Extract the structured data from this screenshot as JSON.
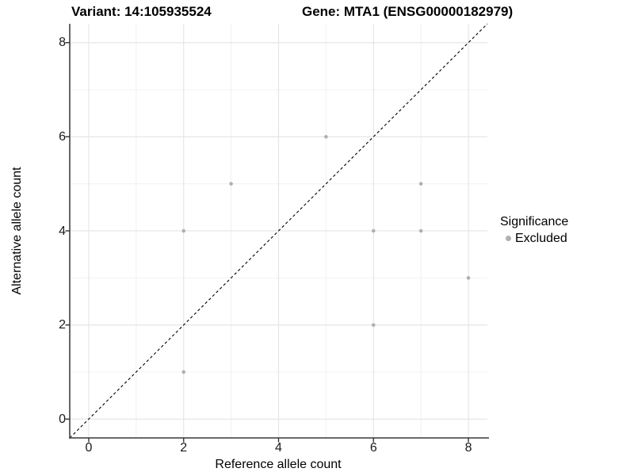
{
  "titles": {
    "left": "Variant: 14:105935524",
    "right": "Gene: MTA1 (ENSG00000182979)"
  },
  "chart_data": {
    "type": "scatter",
    "title_left": "Variant: 14:105935524",
    "title_right": "Gene: MTA1 (ENSG00000182979)",
    "xlabel": "Reference allele count",
    "ylabel": "Alternative allele count",
    "xlim": [
      -0.4,
      8.4
    ],
    "ylim": [
      -0.4,
      8.4
    ],
    "xticks": [
      0,
      2,
      4,
      6,
      8
    ],
    "yticks": [
      0,
      2,
      4,
      6,
      8
    ],
    "minor_ticks": [
      1,
      3,
      5,
      7
    ],
    "grid": true,
    "identity_line": {
      "slope": 1,
      "intercept": 0,
      "style": "dashed",
      "color": "#000000"
    },
    "series": [
      {
        "name": "Excluded",
        "color": "#b0b0b0",
        "points": [
          [
            2,
            1
          ],
          [
            2,
            4
          ],
          [
            3,
            5
          ],
          [
            5,
            6
          ],
          [
            6,
            2
          ],
          [
            6,
            4
          ],
          [
            7,
            4
          ],
          [
            7,
            5
          ],
          [
            8,
            3
          ]
        ]
      }
    ],
    "legend": {
      "title": "Significance",
      "position": "right",
      "items": [
        {
          "label": "Excluded",
          "color": "#b0b0b0"
        }
      ]
    }
  },
  "colors": {
    "background": "#ffffff",
    "grid_major": "#e6e6e6",
    "grid_minor": "#f0f0f0",
    "axis_line": "#555555",
    "tick_mark": "#333333",
    "point": "#b0b0b0",
    "text": "#000000"
  }
}
